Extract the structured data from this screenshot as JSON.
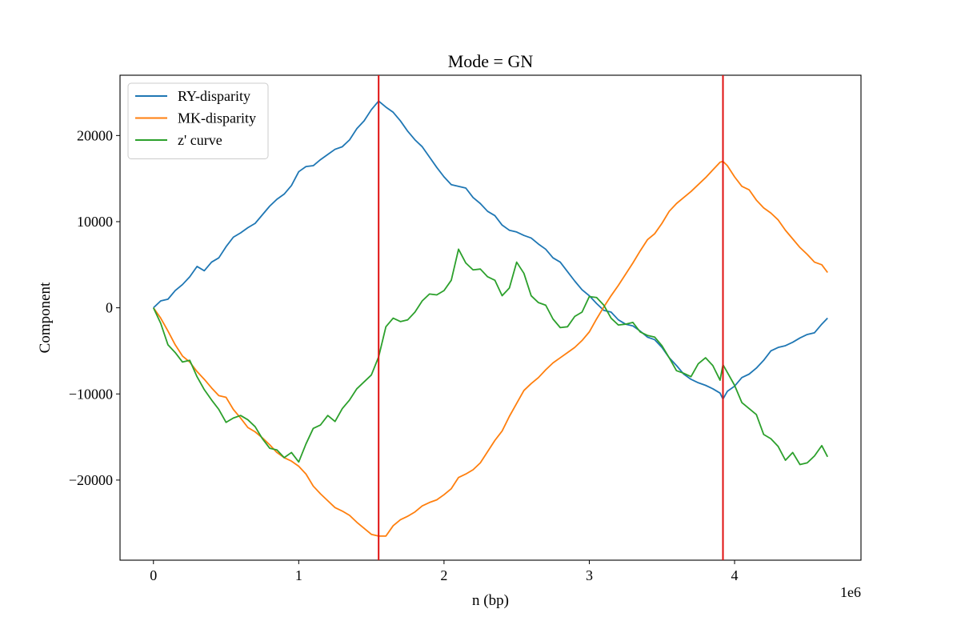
{
  "chart_data": {
    "type": "line",
    "title": "Mode = GN",
    "xlabel": "n (bp)",
    "ylabel": "Component",
    "x_offset_label": "1e6",
    "xlim": [
      -230000,
      4870000
    ],
    "ylim": [
      -29300,
      27000
    ],
    "xticks": [
      {
        "value": 0,
        "label": "0"
      },
      {
        "value": 1000000,
        "label": "1"
      },
      {
        "value": 2000000,
        "label": "2"
      },
      {
        "value": 3000000,
        "label": "3"
      },
      {
        "value": 4000000,
        "label": "4"
      }
    ],
    "yticks": [
      {
        "value": -20000,
        "label": "−20000"
      },
      {
        "value": -10000,
        "label": "−10000"
      },
      {
        "value": 0,
        "label": "0"
      },
      {
        "value": 10000,
        "label": "10000"
      },
      {
        "value": 20000,
        "label": "20000"
      }
    ],
    "grid": false,
    "legend_position": "top-left",
    "vlines": [
      {
        "x": 1550000,
        "color": "#e01010"
      },
      {
        "x": 3920000,
        "color": "#e01010"
      }
    ],
    "series": [
      {
        "name": "RY-disparity",
        "color": "#1f77b4",
        "x": [
          0,
          50000,
          100000,
          150000,
          200000,
          250000,
          300000,
          350000,
          400000,
          450000,
          500000,
          550000,
          600000,
          650000,
          700000,
          750000,
          800000,
          850000,
          900000,
          950000,
          1000000,
          1050000,
          1100000,
          1150000,
          1200000,
          1250000,
          1300000,
          1350000,
          1400000,
          1450000,
          1500000,
          1550000,
          1600000,
          1650000,
          1700000,
          1750000,
          1800000,
          1850000,
          1900000,
          1950000,
          2000000,
          2050000,
          2100000,
          2150000,
          2200000,
          2250000,
          2300000,
          2350000,
          2400000,
          2450000,
          2500000,
          2550000,
          2600000,
          2650000,
          2700000,
          2750000,
          2800000,
          2850000,
          2900000,
          2950000,
          3000000,
          3050000,
          3100000,
          3150000,
          3200000,
          3250000,
          3300000,
          3350000,
          3400000,
          3450000,
          3500000,
          3550000,
          3600000,
          3650000,
          3700000,
          3750000,
          3800000,
          3850000,
          3900000,
          3920000,
          3950000,
          4000000,
          4050000,
          4100000,
          4150000,
          4200000,
          4250000,
          4300000,
          4350000,
          4400000,
          4450000,
          4500000,
          4550000,
          4600000,
          4640000
        ],
        "values": [
          0,
          800,
          1000,
          2000,
          2700,
          3600,
          4800,
          4300,
          5300,
          5800,
          7100,
          8200,
          8700,
          9300,
          9800,
          10800,
          11800,
          12600,
          13200,
          14200,
          15800,
          16400,
          16500,
          17200,
          17800,
          18400,
          18700,
          19500,
          20800,
          21700,
          23000,
          24000,
          23300,
          22700,
          21700,
          20500,
          19500,
          18700,
          17500,
          16300,
          15200,
          14300,
          14100,
          13900,
          12800,
          12100,
          11200,
          10700,
          9600,
          9000,
          8800,
          8400,
          8100,
          7400,
          6800,
          5800,
          5300,
          4200,
          3100,
          2100,
          1400,
          500,
          -300,
          -500,
          -1400,
          -1900,
          -2100,
          -2700,
          -3400,
          -3700,
          -4600,
          -5800,
          -6700,
          -7700,
          -8300,
          -8700,
          -9000,
          -9400,
          -9900,
          -10600,
          -9700,
          -9100,
          -8100,
          -7700,
          -7000,
          -6100,
          -5000,
          -4600,
          -4400,
          -4000,
          -3500,
          -3100,
          -2900,
          -1900,
          -1200
        ]
      },
      {
        "name": "MK-disparity",
        "color": "#ff7f0e",
        "x": [
          0,
          50000,
          100000,
          150000,
          200000,
          250000,
          300000,
          350000,
          400000,
          450000,
          500000,
          550000,
          600000,
          650000,
          700000,
          750000,
          800000,
          850000,
          900000,
          950000,
          1000000,
          1050000,
          1100000,
          1150000,
          1200000,
          1250000,
          1300000,
          1350000,
          1400000,
          1450000,
          1500000,
          1550000,
          1600000,
          1650000,
          1700000,
          1750000,
          1800000,
          1850000,
          1900000,
          1950000,
          2000000,
          2050000,
          2100000,
          2150000,
          2200000,
          2250000,
          2300000,
          2350000,
          2400000,
          2450000,
          2500000,
          2550000,
          2600000,
          2650000,
          2700000,
          2750000,
          2800000,
          2850000,
          2900000,
          2950000,
          3000000,
          3050000,
          3100000,
          3150000,
          3200000,
          3250000,
          3300000,
          3350000,
          3400000,
          3450000,
          3500000,
          3550000,
          3600000,
          3650000,
          3700000,
          3750000,
          3800000,
          3850000,
          3900000,
          3920000,
          3950000,
          4000000,
          4050000,
          4100000,
          4150000,
          4200000,
          4250000,
          4300000,
          4350000,
          4400000,
          4450000,
          4500000,
          4550000,
          4600000,
          4640000
        ],
        "values": [
          0,
          -1200,
          -2700,
          -4300,
          -5600,
          -6300,
          -7400,
          -8300,
          -9300,
          -10200,
          -10400,
          -11800,
          -12800,
          -13900,
          -14400,
          -15100,
          -15900,
          -16800,
          -17400,
          -17800,
          -18400,
          -19300,
          -20700,
          -21600,
          -22400,
          -23200,
          -23600,
          -24100,
          -24900,
          -25600,
          -26300,
          -26500,
          -26500,
          -25300,
          -24600,
          -24200,
          -23700,
          -23000,
          -22600,
          -22300,
          -21700,
          -21000,
          -19700,
          -19300,
          -18800,
          -18000,
          -16700,
          -15400,
          -14300,
          -12600,
          -11100,
          -9600,
          -8800,
          -8100,
          -7200,
          -6400,
          -5800,
          -5200,
          -4600,
          -3800,
          -2800,
          -1300,
          100,
          1400,
          2600,
          3900,
          5200,
          6600,
          7900,
          8600,
          9800,
          11200,
          12100,
          12800,
          13500,
          14300,
          15100,
          16000,
          16900,
          17000,
          16500,
          15200,
          14100,
          13700,
          12500,
          11600,
          11000,
          10200,
          9000,
          8000,
          7000,
          6200,
          5300,
          5000,
          4100
        ]
      },
      {
        "name": "z' curve",
        "color": "#2ca02c",
        "x": [
          0,
          50000,
          100000,
          150000,
          200000,
          250000,
          300000,
          350000,
          400000,
          450000,
          500000,
          550000,
          600000,
          650000,
          700000,
          750000,
          800000,
          850000,
          900000,
          950000,
          1000000,
          1050000,
          1100000,
          1150000,
          1200000,
          1250000,
          1300000,
          1350000,
          1400000,
          1450000,
          1500000,
          1550000,
          1600000,
          1650000,
          1700000,
          1750000,
          1800000,
          1850000,
          1900000,
          1950000,
          2000000,
          2050000,
          2100000,
          2150000,
          2200000,
          2250000,
          2300000,
          2350000,
          2400000,
          2450000,
          2500000,
          2550000,
          2600000,
          2650000,
          2700000,
          2750000,
          2800000,
          2850000,
          2900000,
          2950000,
          3000000,
          3050000,
          3100000,
          3150000,
          3200000,
          3250000,
          3300000,
          3350000,
          3400000,
          3450000,
          3500000,
          3550000,
          3600000,
          3650000,
          3700000,
          3750000,
          3800000,
          3850000,
          3900000,
          3920000,
          3950000,
          4000000,
          4050000,
          4100000,
          4150000,
          4200000,
          4250000,
          4300000,
          4350000,
          4400000,
          4450000,
          4500000,
          4550000,
          4600000,
          4640000
        ],
        "values": [
          0,
          -1800,
          -4300,
          -5200,
          -6300,
          -6100,
          -8000,
          -9500,
          -10700,
          -11800,
          -13300,
          -12800,
          -12500,
          -13000,
          -13800,
          -15200,
          -16300,
          -16500,
          -17400,
          -16800,
          -17900,
          -15800,
          -14000,
          -13600,
          -12500,
          -13200,
          -11700,
          -10700,
          -9400,
          -8600,
          -7800,
          -5700,
          -2200,
          -1200,
          -1600,
          -1400,
          -500,
          800,
          1600,
          1500,
          2000,
          3200,
          6800,
          5200,
          4400,
          4500,
          3600,
          3200,
          1400,
          2300,
          5300,
          4000,
          1400,
          600,
          300,
          -1300,
          -2300,
          -2200,
          -1000,
          -500,
          1300,
          1200,
          300,
          -1200,
          -2000,
          -1900,
          -1700,
          -2800,
          -3200,
          -3400,
          -4400,
          -5800,
          -7300,
          -7600,
          -8000,
          -6500,
          -5800,
          -6700,
          -8400,
          -6600,
          -7500,
          -9000,
          -11000,
          -11700,
          -12400,
          -14700,
          -15200,
          -16100,
          -17700,
          -16800,
          -18200,
          -18000,
          -17200,
          -16000,
          -17300
        ]
      }
    ]
  }
}
